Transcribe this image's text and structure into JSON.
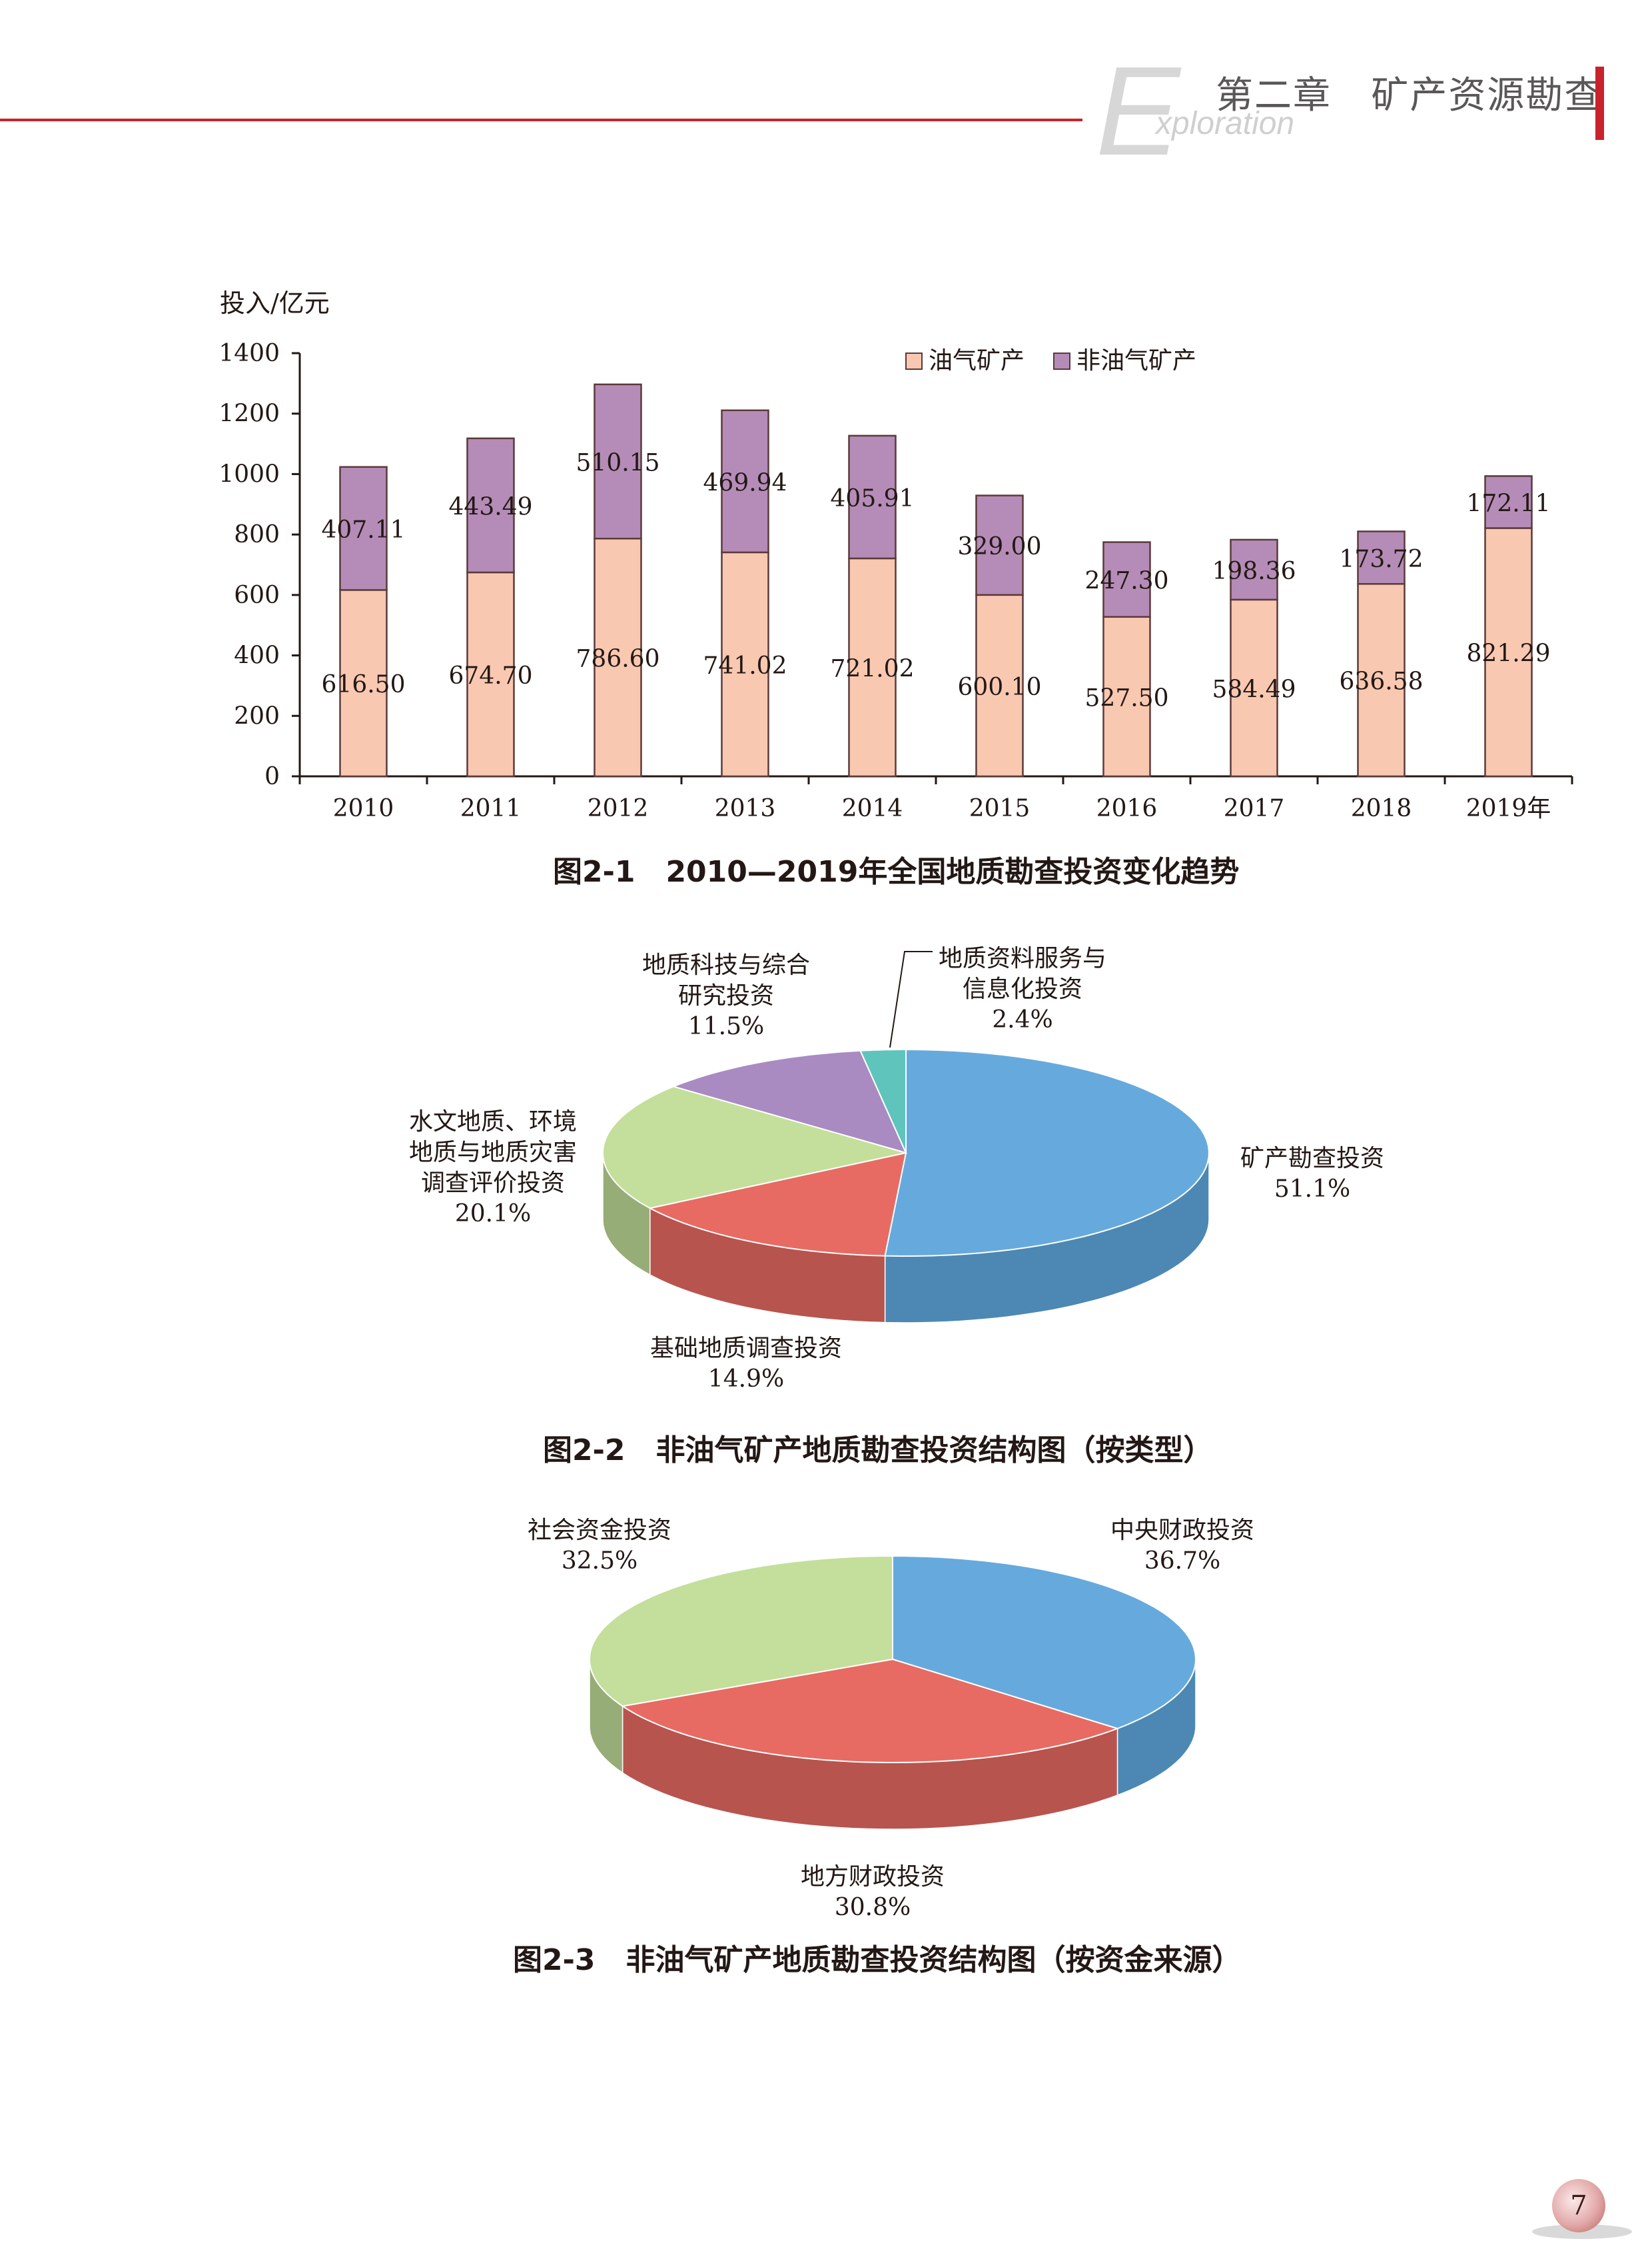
{
  "header": {
    "big_letter": "E",
    "word": "xploration",
    "chapter": "第二章   矿产资源勘查"
  },
  "colors": {
    "accent": "#c8232c",
    "oil": "#f9c8b1",
    "nonoil": "#b58cb7"
  },
  "chart_data": [
    {
      "type": "bar",
      "stacked": true,
      "ylabel": "投入/亿元",
      "ylim": [
        0,
        1400
      ],
      "yticks": [
        "0",
        "200",
        "400",
        "600",
        "800",
        "1000",
        "1200",
        "1400"
      ],
      "categories": [
        "2010",
        "2011",
        "2012",
        "2013",
        "2014",
        "2015",
        "2016",
        "2017",
        "2018",
        "2019年"
      ],
      "series": [
        {
          "name": "油气矿产",
          "color": "#f9c8b1",
          "values": [
            616.5,
            674.7,
            786.6,
            741.02,
            721.02,
            600.1,
            527.5,
            584.49,
            636.58,
            821.29
          ],
          "labels": [
            "616.50",
            "674.70",
            "786.60",
            "741.02",
            "721.02",
            "600.10",
            "527.50",
            "584.49",
            "636.58",
            "821.29"
          ]
        },
        {
          "name": "非油气矿产",
          "color": "#b58cb7",
          "values": [
            407.11,
            443.49,
            510.15,
            469.94,
            405.91,
            329.0,
            247.3,
            198.36,
            173.72,
            172.11
          ],
          "labels": [
            "407.11",
            "443.49",
            "510.15",
            "469.94",
            "405.91",
            "329.00",
            "247.30",
            "198.36",
            "173.72",
            "172.11"
          ]
        }
      ],
      "legend": "top-right",
      "caption": "图2-1   2010—2019年全国地质勘查投资变化趋势"
    },
    {
      "type": "pie",
      "style": "3d",
      "slices": [
        {
          "label_lines": [
            "矿产勘查投资"
          ],
          "pct": "51.1%",
          "value": 51.1,
          "color": "#66aadd",
          "side": "#4c88b3"
        },
        {
          "label_lines": [
            "基础地质调查投资"
          ],
          "pct": "14.9%",
          "value": 14.9,
          "color": "#e86b63",
          "side": "#b8544e"
        },
        {
          "label_lines": [
            "水文地质、环境",
            "地质与地质灾害",
            "调查评价投资"
          ],
          "pct": "20.1%",
          "value": 20.1,
          "color": "#c3df9b",
          "side": "#97ad77"
        },
        {
          "label_lines": [
            "地质科技与综合",
            "研究投资"
          ],
          "pct": "11.5%",
          "value": 11.5,
          "color": "#a98bc2",
          "side": "#856c9a"
        },
        {
          "label_lines": [
            "地质资料服务与",
            "信息化投资"
          ],
          "pct": "2.4%",
          "value": 2.4,
          "color": "#5fc4bb",
          "side": "#479a93"
        }
      ],
      "caption": "图2-2   非油气矿产地质勘查投资结构图（按类型）"
    },
    {
      "type": "pie",
      "style": "3d",
      "slices": [
        {
          "label_lines": [
            "中央财政投资"
          ],
          "pct": "36.7%",
          "value": 36.7,
          "color": "#66aadd",
          "side": "#4c88b3"
        },
        {
          "label_lines": [
            "地方财政投资"
          ],
          "pct": "30.8%",
          "value": 30.8,
          "color": "#e86b63",
          "side": "#b8544e"
        },
        {
          "label_lines": [
            "社会资金投资"
          ],
          "pct": "32.5%",
          "value": 32.5,
          "color": "#c3df9b",
          "side": "#97ad77"
        }
      ],
      "caption": "图2-3   非油气矿产地质勘查投资结构图（按资金来源）"
    }
  ],
  "page_number": "7"
}
